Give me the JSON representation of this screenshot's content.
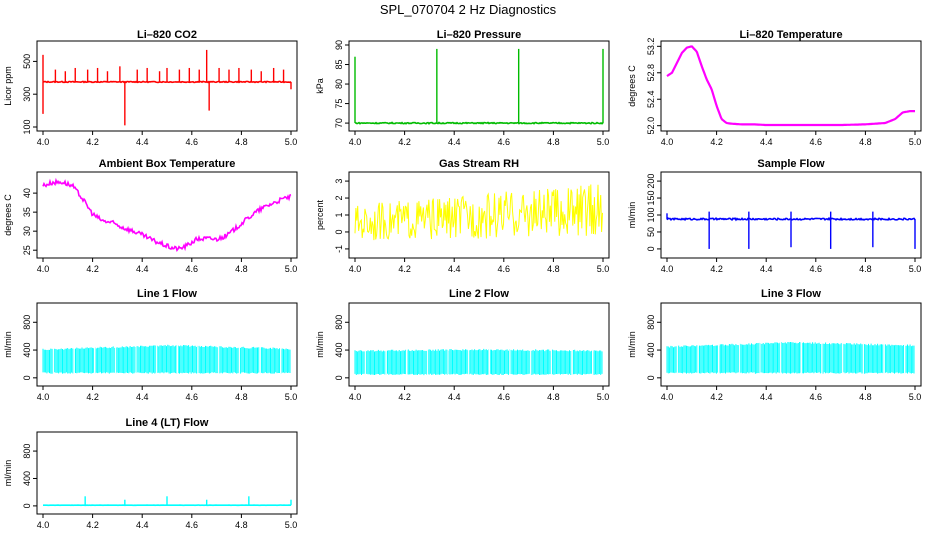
{
  "figure_title": "SPL_070704  2 Hz Diagnostics",
  "chart_data": [
    {
      "type": "line",
      "title": "Li–820 CO2",
      "ylabel": "Licor ppm",
      "color": "#ff0000",
      "xlim": [
        4.0,
        5.0
      ],
      "xticks": [
        "4.0",
        "4.2",
        "4.4",
        "4.6",
        "4.8",
        "5.0"
      ],
      "ylim": [
        100,
        600
      ],
      "yticks": [
        100,
        300,
        500
      ],
      "baseline": 375,
      "band": 6,
      "spikes": [
        [
          4.0,
          540
        ],
        [
          4.0,
          180
        ],
        [
          4.05,
          450
        ],
        [
          4.09,
          440
        ],
        [
          4.13,
          460
        ],
        [
          4.18,
          450
        ],
        [
          4.22,
          460
        ],
        [
          4.26,
          440
        ],
        [
          4.31,
          470
        ],
        [
          4.33,
          110
        ],
        [
          4.38,
          450
        ],
        [
          4.42,
          460
        ],
        [
          4.47,
          440
        ],
        [
          4.5,
          460
        ],
        [
          4.55,
          450
        ],
        [
          4.59,
          460
        ],
        [
          4.63,
          450
        ],
        [
          4.66,
          570
        ],
        [
          4.67,
          200
        ],
        [
          4.71,
          460
        ],
        [
          4.75,
          450
        ],
        [
          4.79,
          460
        ],
        [
          4.84,
          450
        ],
        [
          4.88,
          440
        ],
        [
          4.93,
          460
        ],
        [
          4.97,
          450
        ],
        [
          5.0,
          330
        ]
      ]
    },
    {
      "type": "line",
      "title": "Li–820 Pressure",
      "ylabel": "kPa",
      "color": "#00bb00",
      "xlim": [
        4.0,
        5.0
      ],
      "xticks": [
        "4.0",
        "4.2",
        "4.4",
        "4.6",
        "4.8",
        "5.0"
      ],
      "ylim": [
        69,
        90
      ],
      "yticks": [
        70,
        75,
        80,
        85,
        90
      ],
      "baseline": 70,
      "band": 0.3,
      "spikes": [
        [
          4.0,
          87
        ],
        [
          4.33,
          89
        ],
        [
          4.66,
          89
        ],
        [
          5.0,
          89
        ]
      ]
    },
    {
      "type": "line",
      "title": "Li–820 Temperature",
      "ylabel": "degrees C",
      "color": "#ff00ff",
      "xlim": [
        4.0,
        5.0
      ],
      "xticks": [
        "4.0",
        "4.2",
        "4.4",
        "4.6",
        "4.8",
        "5.0"
      ],
      "ylim": [
        51.98,
        53.22
      ],
      "yticks": [
        52.0,
        52.4,
        52.8,
        53.2
      ],
      "points": [
        [
          4.0,
          52.75
        ],
        [
          4.02,
          52.8
        ],
        [
          4.04,
          52.95
        ],
        [
          4.06,
          53.1
        ],
        [
          4.08,
          53.18
        ],
        [
          4.1,
          53.2
        ],
        [
          4.12,
          53.12
        ],
        [
          4.14,
          52.9
        ],
        [
          4.16,
          52.7
        ],
        [
          4.18,
          52.55
        ],
        [
          4.2,
          52.3
        ],
        [
          4.22,
          52.1
        ],
        [
          4.24,
          52.04
        ],
        [
          4.26,
          52.03
        ],
        [
          4.3,
          52.02
        ],
        [
          4.35,
          52.02
        ],
        [
          4.4,
          52.01
        ],
        [
          4.5,
          52.01
        ],
        [
          4.6,
          52.01
        ],
        [
          4.7,
          52.01
        ],
        [
          4.8,
          52.02
        ],
        [
          4.88,
          52.04
        ],
        [
          4.92,
          52.1
        ],
        [
          4.95,
          52.2
        ],
        [
          4.98,
          52.22
        ],
        [
          5.0,
          52.22
        ]
      ]
    },
    {
      "type": "line",
      "title": "Ambient Box Temperature",
      "ylabel": "degrees C",
      "color": "#ff00ff",
      "xlim": [
        4.0,
        5.0
      ],
      "xticks": [
        "4.0",
        "4.2",
        "4.4",
        "4.6",
        "4.8",
        "5.0"
      ],
      "ylim": [
        24,
        44.5
      ],
      "yticks": [
        25,
        30,
        35,
        40
      ],
      "band": 0.6,
      "points": [
        [
          4.0,
          42
        ],
        [
          4.04,
          42.8
        ],
        [
          4.08,
          42.9
        ],
        [
          4.12,
          41.8
        ],
        [
          4.16,
          38.5
        ],
        [
          4.2,
          34.5
        ],
        [
          4.24,
          32.7
        ],
        [
          4.28,
          32.2
        ],
        [
          4.32,
          31
        ],
        [
          4.36,
          30.1
        ],
        [
          4.4,
          29
        ],
        [
          4.44,
          27.7
        ],
        [
          4.48,
          26.6
        ],
        [
          4.52,
          25.6
        ],
        [
          4.55,
          25.4
        ],
        [
          4.58,
          26.2
        ],
        [
          4.62,
          27.9
        ],
        [
          4.66,
          28.1
        ],
        [
          4.7,
          27.9
        ],
        [
          4.74,
          28.8
        ],
        [
          4.78,
          30.9
        ],
        [
          4.82,
          33.1
        ],
        [
          4.86,
          35.1
        ],
        [
          4.9,
          36.6
        ],
        [
          4.94,
          37.7
        ],
        [
          4.98,
          38.8
        ],
        [
          5.0,
          39
        ]
      ]
    },
    {
      "type": "line",
      "title": "Gas Stream RH",
      "ylabel": "percent",
      "color": "#ffff00",
      "xlim": [
        4.0,
        5.0
      ],
      "xticks": [
        "4.0",
        "4.2",
        "4.4",
        "4.6",
        "4.8",
        "5.0"
      ],
      "ylim": [
        -1.3,
        3.3
      ],
      "yticks": [
        -1,
        0,
        1,
        2,
        3
      ],
      "low": [
        [
          4.0,
          -0.5
        ],
        [
          5.0,
          -0.3
        ]
      ],
      "high": [
        [
          4.0,
          1.6
        ],
        [
          5.0,
          2.9
        ]
      ]
    },
    {
      "type": "line",
      "title": "Sample Flow",
      "ylabel": "ml/min",
      "color": "#0000ff",
      "xlim": [
        4.0,
        5.0
      ],
      "xticks": [
        "4.0",
        "4.2",
        "4.4",
        "4.6",
        "4.8",
        "5.0"
      ],
      "ylim": [
        -15,
        215
      ],
      "yticks": [
        0,
        50,
        100,
        150,
        200
      ],
      "baseline": 88,
      "band": 5,
      "spikes": [
        [
          4.0,
          105
        ],
        [
          4.17,
          0
        ],
        [
          4.17,
          110
        ],
        [
          4.33,
          0
        ],
        [
          4.33,
          110
        ],
        [
          4.5,
          5
        ],
        [
          4.5,
          110
        ],
        [
          4.66,
          0
        ],
        [
          4.66,
          110
        ],
        [
          4.83,
          5
        ],
        [
          4.83,
          110
        ],
        [
          5.0,
          0
        ]
      ]
    },
    {
      "type": "band",
      "title": "Line 1 Flow",
      "ylabel": "ml/min",
      "color": "#00ffff",
      "xlim": [
        4.0,
        5.0
      ],
      "xticks": [
        "4.0",
        "4.2",
        "4.4",
        "4.6",
        "4.8",
        "5.0"
      ],
      "ylim": [
        -60,
        1020
      ],
      "yticks": [
        0,
        400,
        800
      ],
      "low": 60,
      "high": [
        [
          4.0,
          420
        ],
        [
          4.5,
          480
        ],
        [
          5.0,
          430
        ]
      ]
    },
    {
      "type": "band",
      "title": "Line 2 Flow",
      "ylabel": "ml/min",
      "color": "#00ffff",
      "xlim": [
        4.0,
        5.0
      ],
      "xticks": [
        "4.0",
        "4.2",
        "4.4",
        "4.6",
        "4.8",
        "5.0"
      ],
      "ylim": [
        -60,
        1020
      ],
      "yticks": [
        0,
        400,
        800
      ],
      "low": 40,
      "high": [
        [
          4.0,
          400
        ],
        [
          4.5,
          420
        ],
        [
          5.0,
          400
        ]
      ]
    },
    {
      "type": "band",
      "title": "Line 3 Flow",
      "ylabel": "ml/min",
      "color": "#00ffff",
      "xlim": [
        4.0,
        5.0
      ],
      "xticks": [
        "4.0",
        "4.2",
        "4.4",
        "4.6",
        "4.8",
        "5.0"
      ],
      "ylim": [
        -60,
        1020
      ],
      "yticks": [
        0,
        400,
        800
      ],
      "low": 60,
      "high": [
        [
          4.0,
          460
        ],
        [
          4.5,
          520
        ],
        [
          5.0,
          480
        ]
      ]
    },
    {
      "type": "line",
      "title": "Line 4 (LT) Flow",
      "ylabel": "ml/min",
      "color": "#00ffff",
      "xlim": [
        4.0,
        5.0
      ],
      "xticks": [
        "4.0",
        "4.2",
        "4.4",
        "4.6",
        "4.8",
        "5.0"
      ],
      "ylim": [
        -60,
        1020
      ],
      "yticks": [
        0,
        400,
        800
      ],
      "baseline": 10,
      "band": 2,
      "spikes": [
        [
          4.17,
          140
        ],
        [
          4.33,
          90
        ],
        [
          4.5,
          140
        ],
        [
          4.66,
          90
        ],
        [
          4.83,
          140
        ],
        [
          5.0,
          90
        ]
      ]
    }
  ]
}
